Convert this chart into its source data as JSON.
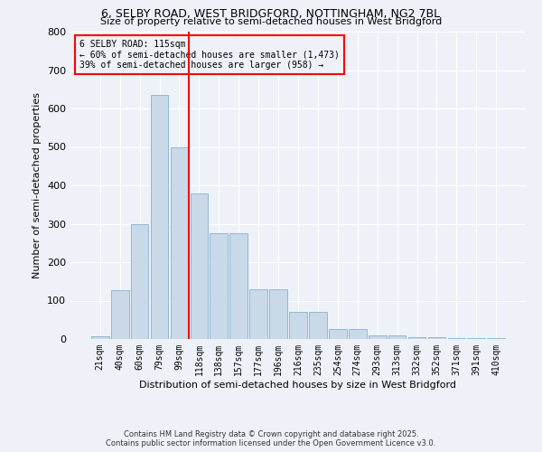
{
  "title_line1": "6, SELBY ROAD, WEST BRIDGFORD, NOTTINGHAM, NG2 7BL",
  "title_line2": "Size of property relative to semi-detached houses in West Bridgford",
  "xlabel": "Distribution of semi-detached houses by size in West Bridgford",
  "ylabel": "Number of semi-detached properties",
  "bar_labels": [
    "21sqm",
    "40sqm",
    "60sqm",
    "79sqm",
    "99sqm",
    "118sqm",
    "138sqm",
    "157sqm",
    "177sqm",
    "196sqm",
    "216sqm",
    "235sqm",
    "254sqm",
    "274sqm",
    "293sqm",
    "313sqm",
    "332sqm",
    "352sqm",
    "371sqm",
    "391sqm",
    "410sqm"
  ],
  "bar_values": [
    8,
    128,
    300,
    635,
    500,
    380,
    275,
    275,
    130,
    130,
    70,
    70,
    25,
    25,
    10,
    10,
    5,
    5,
    3,
    3,
    2
  ],
  "bar_color": "#c9d9e8",
  "bar_edgecolor": "#8fb8d8",
  "vline_color": "red",
  "property_label": "6 SELBY ROAD: 115sqm",
  "annotation_line1": "← 60% of semi-detached houses are smaller (1,473)",
  "annotation_line2": "39% of semi-detached houses are larger (958) →",
  "box_edgecolor": "red",
  "ylim": [
    0,
    800
  ],
  "yticks": [
    0,
    100,
    200,
    300,
    400,
    500,
    600,
    700,
    800
  ],
  "footer_line1": "Contains HM Land Registry data © Crown copyright and database right 2025.",
  "footer_line2": "Contains public sector information licensed under the Open Government Licence v3.0.",
  "bg_color": "#eef2f8",
  "grid_color": "white"
}
